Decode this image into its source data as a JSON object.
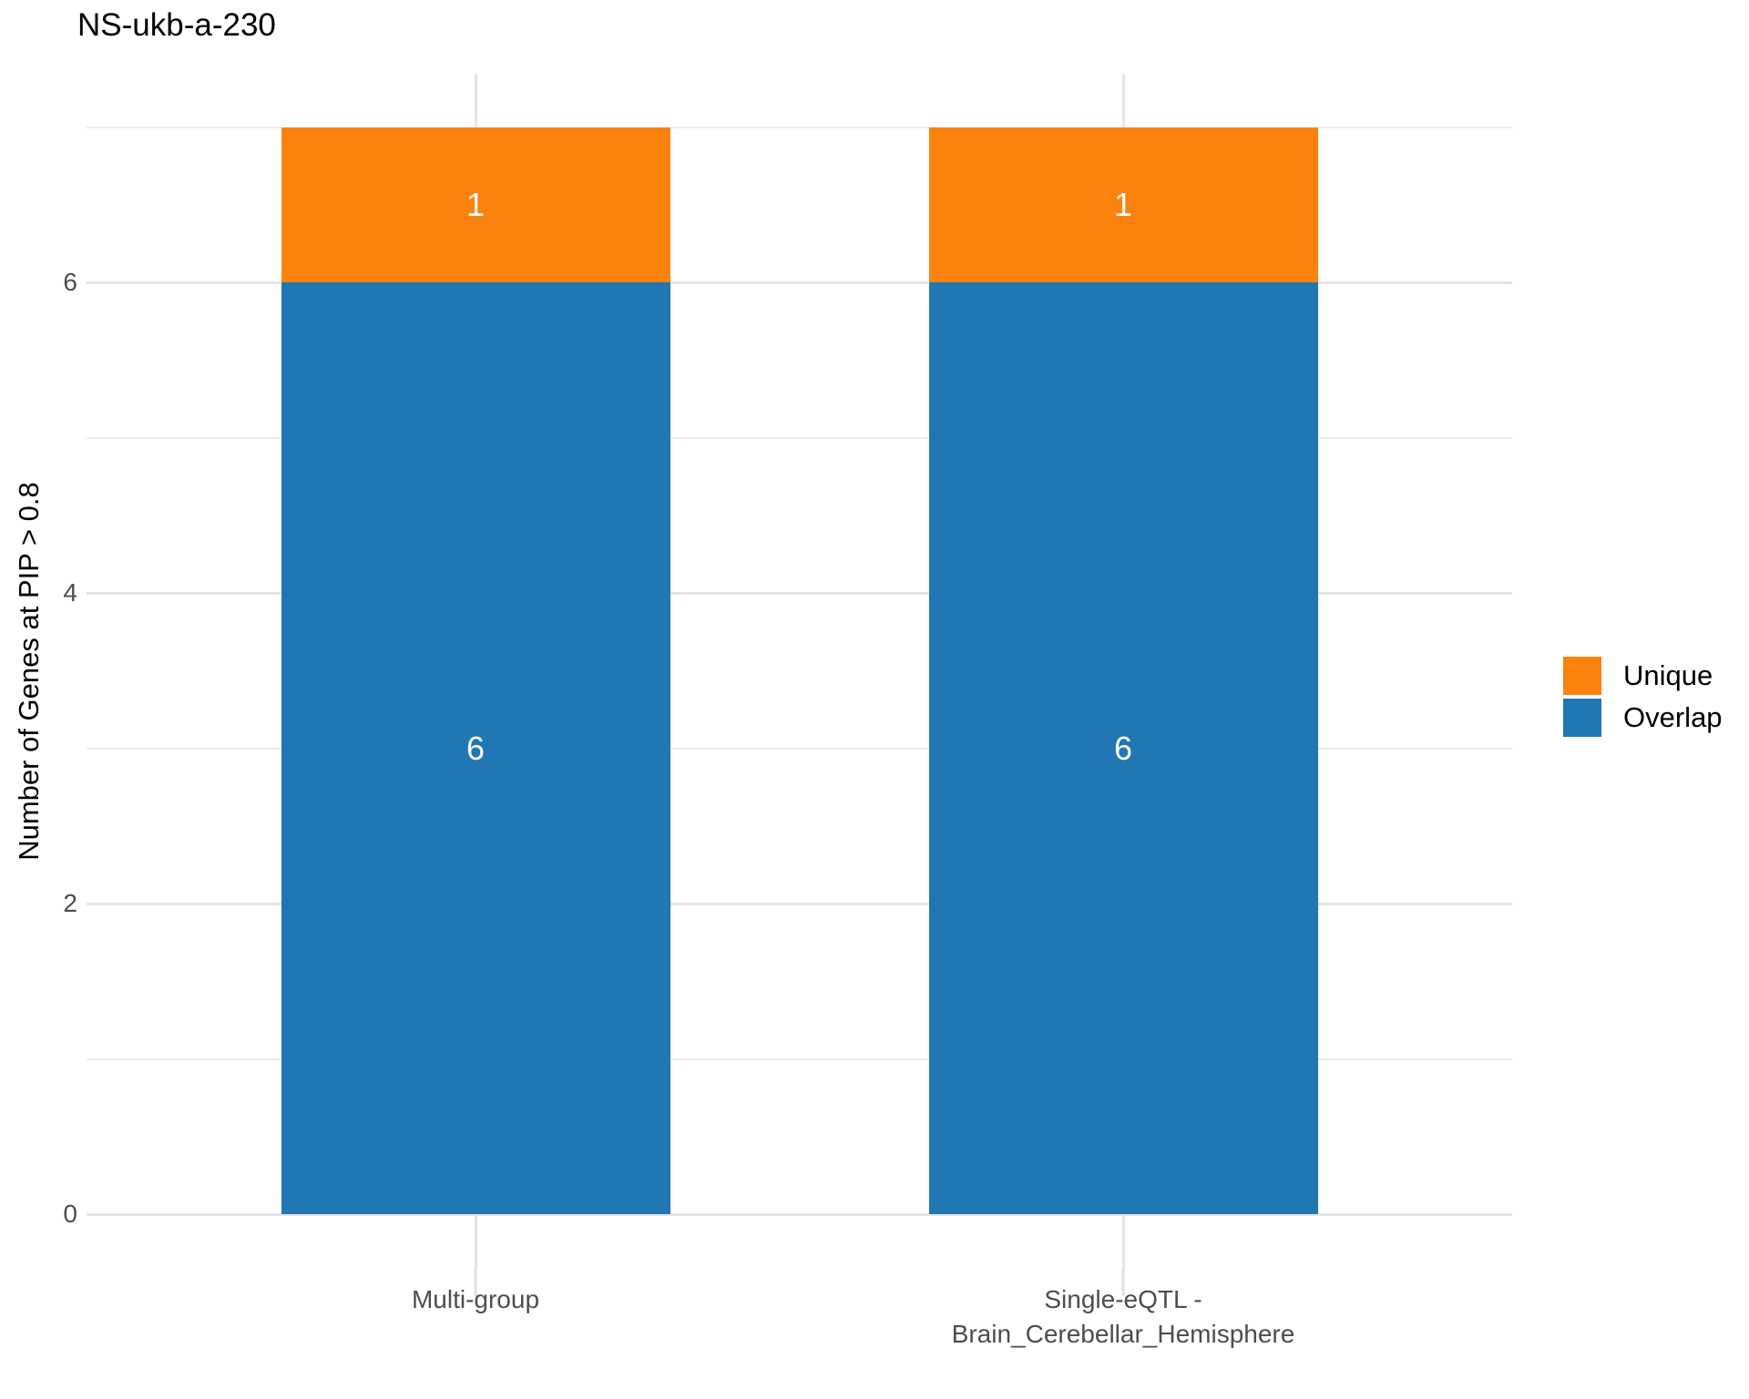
{
  "title": "NS-ukb-a-230",
  "chart_data": {
    "type": "bar",
    "stacked": true,
    "title": "NS-ukb-a-230",
    "xlabel": "",
    "ylabel": "Number of Genes at PIP > 0.8",
    "categories": [
      "Multi-group",
      "Single-eQTL -\nBrain_Cerebellar_Hemisphere"
    ],
    "series": [
      {
        "name": "Overlap",
        "color": "#2176b4",
        "values": [
          6,
          6
        ]
      },
      {
        "name": "Unique",
        "color": "#fc820e",
        "values": [
          1,
          1
        ]
      }
    ],
    "bar_value_labels": [
      [
        "6",
        "1"
      ],
      [
        "6",
        "1"
      ]
    ],
    "ylim": [
      0,
      7
    ],
    "yticks": [
      "0",
      "2",
      "4",
      "6"
    ],
    "ytick_values": [
      0,
      2,
      4,
      6
    ],
    "minor_grid_values": [
      1,
      3,
      5,
      7
    ],
    "grid": true,
    "legend_position": "right",
    "legend": [
      {
        "label": "Unique",
        "color": "#fc820e"
      },
      {
        "label": "Overlap",
        "color": "#2176b4"
      }
    ]
  },
  "colors": {
    "background": "#ffffff",
    "grid_major": "#e4e4e4",
    "grid_minor": "#ededed",
    "tick_text": "#4d4d4d",
    "title_text": "#000000",
    "bar_label_text": "#ffffff"
  }
}
